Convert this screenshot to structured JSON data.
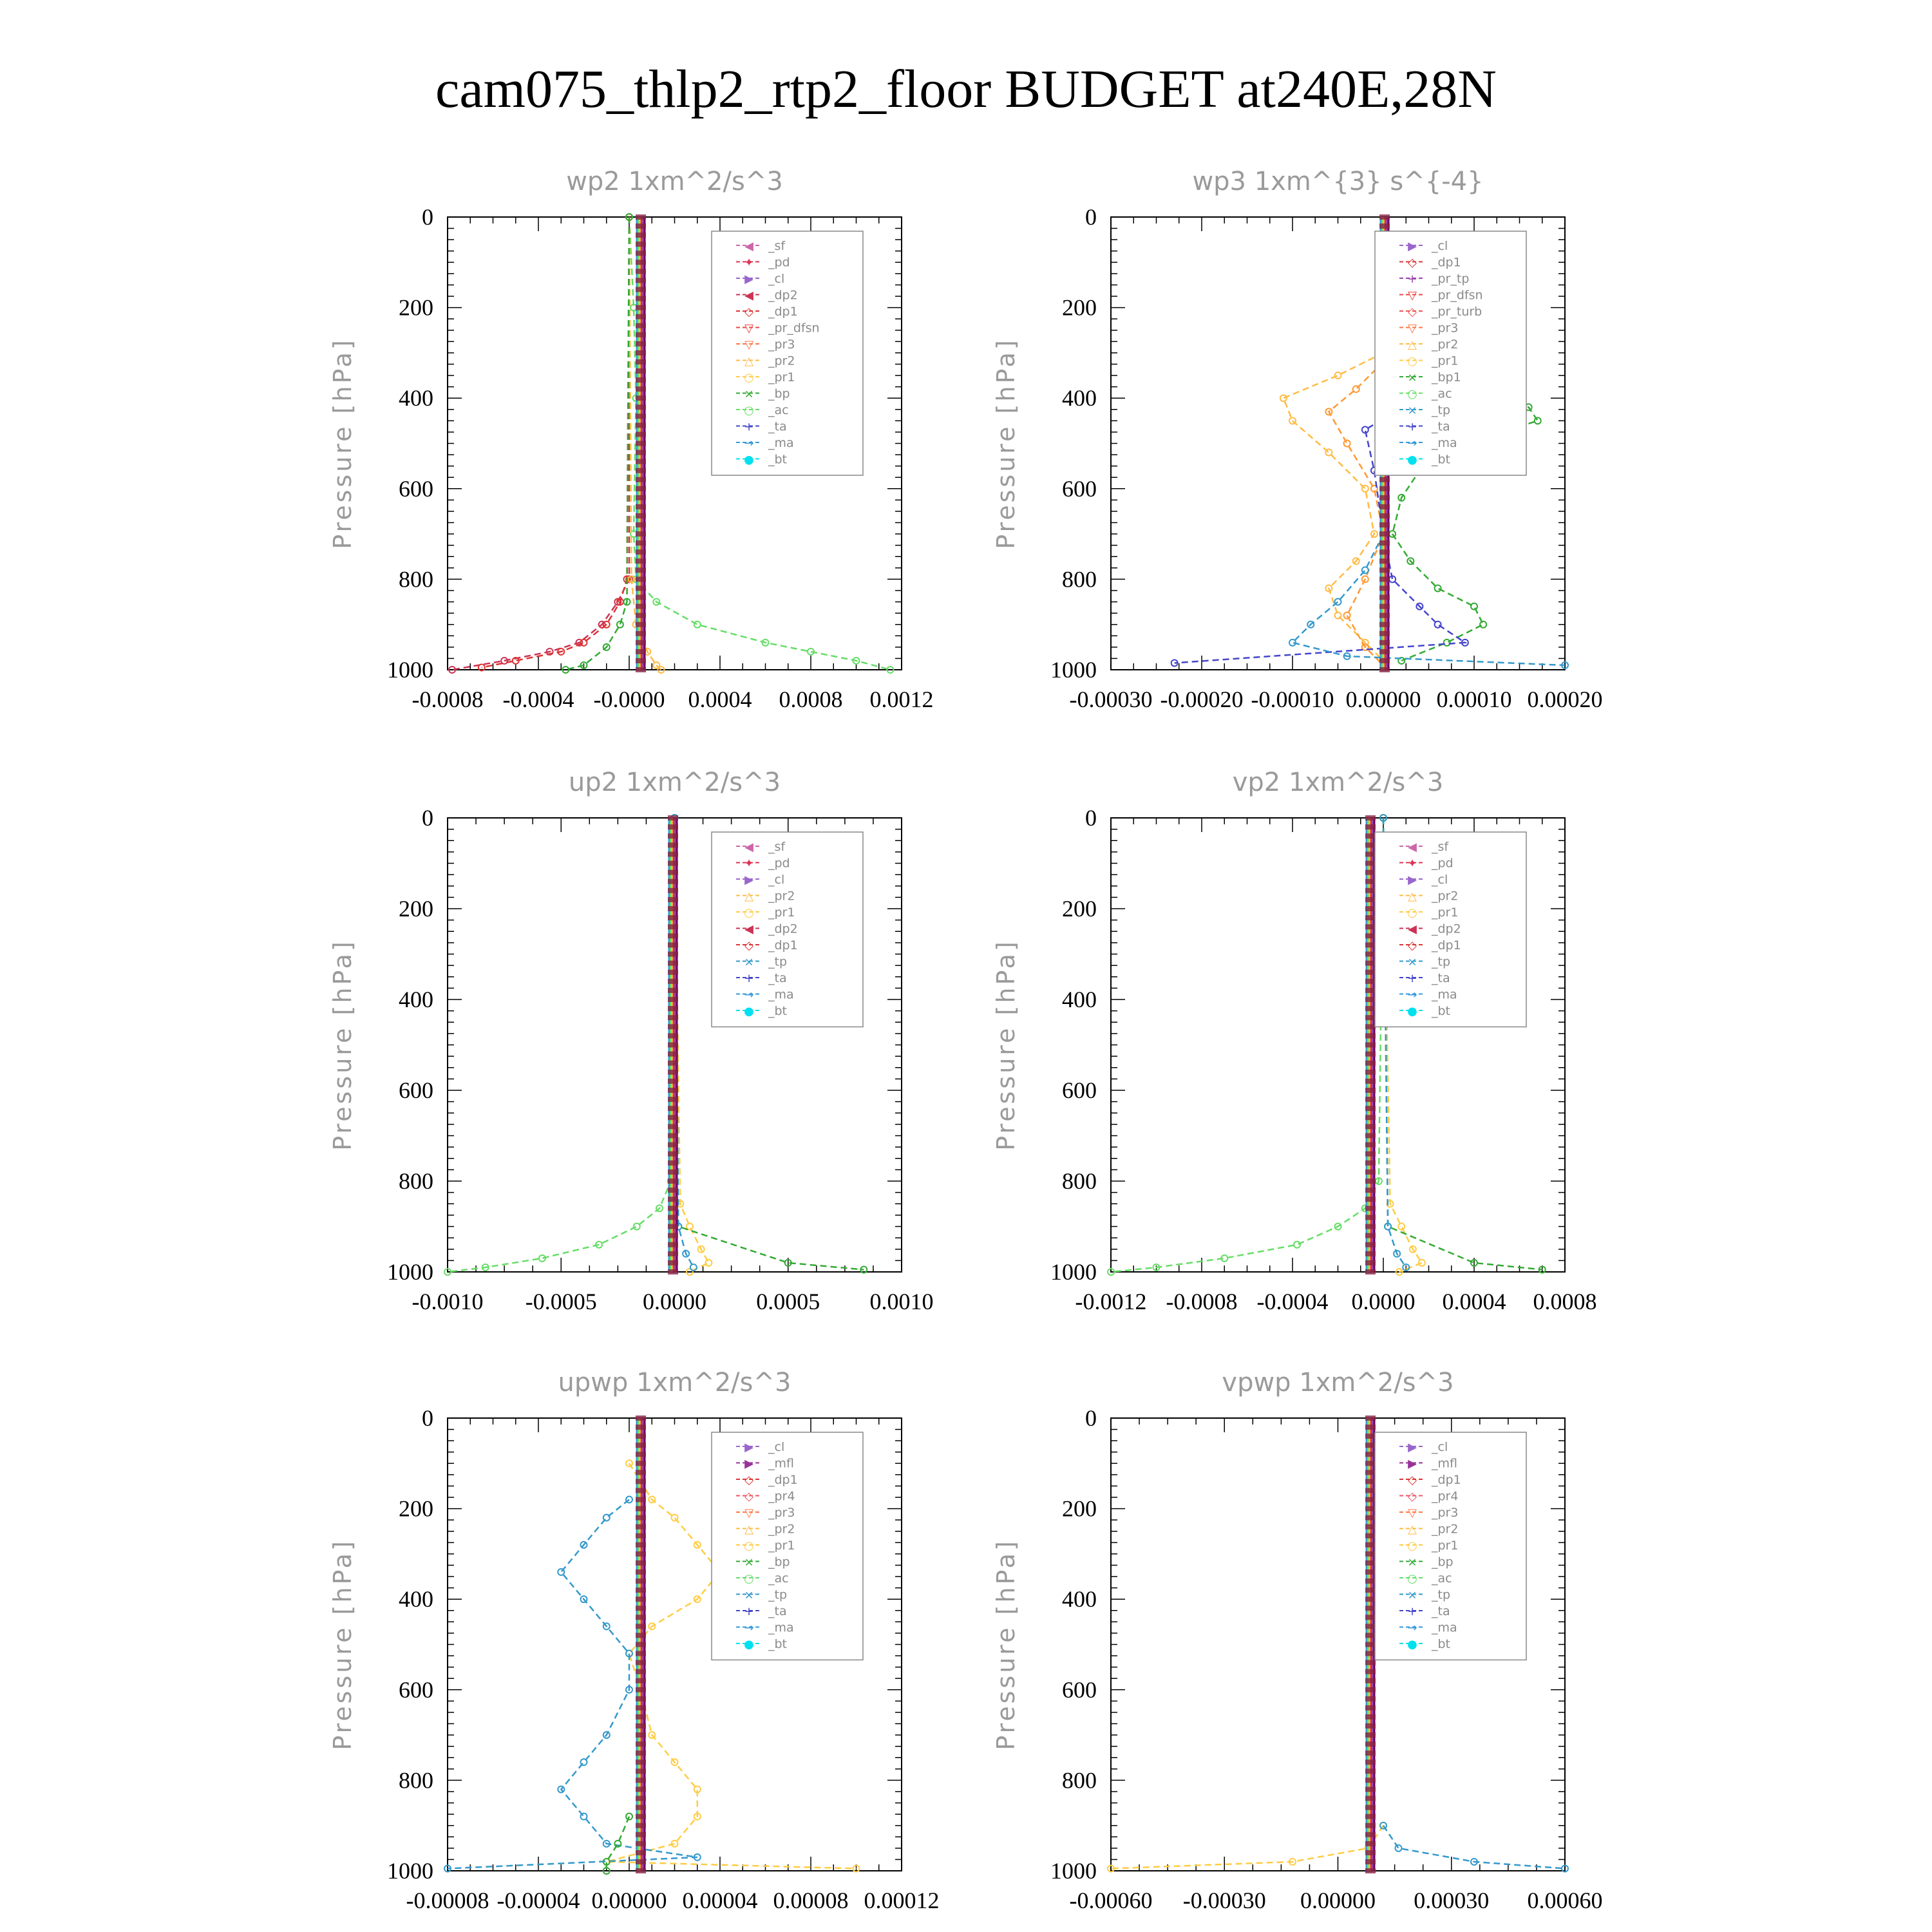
{
  "title": "cam075_thlp2_rtp2_floor  BUDGET at240E,28N",
  "chart_data": [
    {
      "type": "line",
      "title": "wp2   1xm^2/s^3",
      "ylabel": "Pressure  [hPa]",
      "ylim": [
        1000,
        0
      ],
      "yticks": [
        "0",
        "200",
        "400",
        "600",
        "800",
        "1000"
      ],
      "xlim": [
        -0.0008,
        0.0012
      ],
      "xticks": [
        "-0.0008",
        "-0.0004",
        "-0.0000",
        "0.0004",
        "0.0008",
        "0.0012"
      ],
      "legend_position": "top-right",
      "legend": [
        "_sf",
        "_pd",
        "_cl",
        "_dp2",
        "_dp1",
        "_pr_dfsn",
        "_pr3",
        "_pr2",
        "_pr1",
        "_bp",
        "_ac",
        "_ta",
        "_ma",
        "_bt"
      ],
      "series": [
        {
          "name": "_ac",
          "color": "#66dd66",
          "y": [
            0,
            200,
            400,
            700,
            800,
            850,
            900,
            940,
            960,
            980,
            1000
          ],
          "x": [
            0,
            2e-05,
            3e-05,
            2e-05,
            3e-05,
            0.00012,
            0.0003,
            0.0006,
            0.0008,
            0.001,
            0.00115
          ]
        },
        {
          "name": "_dp2",
          "color": "#cc3355",
          "y": [
            0,
            800,
            850,
            900,
            940,
            960,
            980,
            1000
          ],
          "x": [
            0,
            0,
            -5e-05,
            -0.00012,
            -0.00022,
            -0.00035,
            -0.00055,
            -0.00078
          ]
        },
        {
          "name": "_dp1",
          "color": "#dd3333",
          "y": [
            0,
            800,
            850,
            900,
            940,
            960,
            980,
            995
          ],
          "x": [
            0,
            -1e-05,
            -4e-05,
            -0.0001,
            -0.0002,
            -0.0003,
            -0.0005,
            -0.00065
          ]
        },
        {
          "name": "_pr2",
          "color": "#ffbb44",
          "y": [
            0,
            800,
            900,
            960,
            990,
            1000
          ],
          "x": [
            0,
            1e-05,
            3e-05,
            8e-05,
            0.00012,
            0.00014
          ]
        },
        {
          "name": "_pr1",
          "color": "#33aa33",
          "y": [
            0,
            850,
            900,
            950,
            990,
            1000
          ],
          "x": [
            0,
            -1e-05,
            -4e-05,
            -0.0001,
            -0.0002,
            -0.00028
          ]
        }
      ]
    },
    {
      "type": "line",
      "title": "wp3   1xm^{3} s^{-4}",
      "ylabel": "Pressure  [hPa]",
      "ylim": [
        1000,
        0
      ],
      "yticks": [
        "0",
        "200",
        "400",
        "600",
        "800",
        "1000"
      ],
      "xlim": [
        -0.0003,
        0.0002
      ],
      "xticks": [
        "-0.00030",
        "-0.00020",
        "-0.00010",
        "0.00000",
        "0.00010",
        "0.00020"
      ],
      "legend_position": "top-right",
      "legend": [
        "_cl",
        "_dp1",
        "_pr_tp",
        "_pr_dfsn",
        "_pr_turb",
        "_pr3",
        "_pr2",
        "_pr1",
        "_bp1",
        "_ac",
        "_tp",
        "_ta",
        "_ma",
        "_bt"
      ],
      "series": [
        {
          "name": "_bp1",
          "color": "#33aa33",
          "y": [
            300,
            360,
            420,
            450,
            500,
            560,
            620,
            700,
            760,
            820,
            860,
            900,
            940,
            980
          ],
          "x": [
            0,
            6e-05,
            0.00016,
            0.00017,
            9e-05,
            4e-05,
            2e-05,
            1e-05,
            3e-05,
            6e-05,
            0.0001,
            0.00011,
            7e-05,
            2e-05
          ]
        },
        {
          "name": "_pr1",
          "color": "#ffbb44",
          "y": [
            300,
            350,
            400,
            450,
            520,
            600,
            700,
            760,
            820,
            880,
            940,
            980
          ],
          "x": [
            0,
            -5e-05,
            -0.00011,
            -0.0001,
            -6e-05,
            -2e-05,
            -1e-05,
            -3e-05,
            -6e-05,
            -5e-05,
            -2e-05,
            0
          ]
        },
        {
          "name": "_pr2",
          "color": "#ff9933",
          "y": [
            320,
            380,
            430,
            500,
            600,
            700,
            800,
            880,
            950,
            990
          ],
          "x": [
            0,
            -3e-05,
            -6e-05,
            -4e-05,
            -1e-05,
            0,
            -2e-05,
            -4e-05,
            -2e-05,
            0
          ]
        },
        {
          "name": "_ta",
          "color": "#4444cc",
          "y": [
            300,
            360,
            410,
            470,
            560,
            700,
            800,
            860,
            900,
            940,
            985
          ],
          "x": [
            0,
            4e-05,
            3e-05,
            -2e-05,
            -1e-05,
            0,
            1e-05,
            4e-05,
            6e-05,
            9e-05,
            -0.00023
          ]
        },
        {
          "name": "_tp",
          "color": "#3399cc",
          "y": [
            700,
            780,
            850,
            900,
            940,
            970,
            990
          ],
          "x": [
            0,
            -2e-05,
            -5e-05,
            -8e-05,
            -0.0001,
            -4e-05,
            0.0002
          ]
        }
      ]
    },
    {
      "type": "line",
      "title": "up2   1xm^2/s^3",
      "ylabel": "Pressure  [hPa]",
      "ylim": [
        1000,
        0
      ],
      "yticks": [
        "0",
        "200",
        "400",
        "600",
        "800",
        "1000"
      ],
      "xlim": [
        -0.0012,
        0.0012
      ],
      "xticks": [
        "-0.0010",
        "-0.0005",
        "0.0000",
        "0.0005",
        "0.0010"
      ],
      "legend_position": "top-right",
      "legend": [
        "_sf",
        "_pd",
        "_cl",
        "_pr2",
        "_pr1",
        "_dp2",
        "_dp1",
        "_tp",
        "_ta",
        "_ma",
        "_bt"
      ],
      "series": [
        {
          "name": "_dp1",
          "color": "#66dd66",
          "y": [
            0,
            800,
            860,
            900,
            940,
            970,
            990,
            1000
          ],
          "x": [
            0,
            -2e-05,
            -8e-05,
            -0.0002,
            -0.0004,
            -0.0007,
            -0.001,
            -0.0012
          ]
        },
        {
          "name": "_pr1",
          "color": "#ffcc44",
          "y": [
            0,
            850,
            900,
            950,
            980,
            1000
          ],
          "x": [
            0,
            3e-05,
            8e-05,
            0.00014,
            0.00018,
            8e-05
          ]
        },
        {
          "name": "_dp2",
          "color": "#33aa33",
          "y": [
            0,
            900,
            980,
            995
          ],
          "x": [
            0,
            2e-05,
            0.0006,
            0.001
          ]
        },
        {
          "name": "_tp",
          "color": "#3399cc",
          "y": [
            0,
            900,
            960,
            990
          ],
          "x": [
            0,
            2e-05,
            6e-05,
            0.0001
          ]
        }
      ]
    },
    {
      "type": "line",
      "title": "vp2   1xm^2/s^3",
      "ylabel": "Pressure  [hPa]",
      "ylim": [
        1000,
        0
      ],
      "yticks": [
        "0",
        "200",
        "400",
        "600",
        "800",
        "1000"
      ],
      "xlim": [
        -0.0012,
        0.0008
      ],
      "xticks": [
        "-0.0012",
        "-0.0008",
        "-0.0004",
        "0.0000",
        "0.0004",
        "0.0008"
      ],
      "legend_position": "top-right",
      "legend": [
        "_sf",
        "_pd",
        "_cl",
        "_pr2",
        "_pr1",
        "_dp2",
        "_dp1",
        "_tp",
        "_ta",
        "_ma",
        "_bt"
      ],
      "series": [
        {
          "name": "_dp1",
          "color": "#66dd66",
          "y": [
            0,
            800,
            860,
            900,
            940,
            970,
            990,
            1000
          ],
          "x": [
            0,
            -2e-05,
            -8e-05,
            -0.0002,
            -0.00038,
            -0.0007,
            -0.001,
            -0.0012
          ]
        },
        {
          "name": "_pr1",
          "color": "#ffcc44",
          "y": [
            0,
            850,
            900,
            950,
            980,
            1000
          ],
          "x": [
            0,
            3e-05,
            8e-05,
            0.00013,
            0.00017,
            7e-05
          ]
        },
        {
          "name": "_dp2",
          "color": "#33aa33",
          "y": [
            0,
            900,
            980,
            995
          ],
          "x": [
            0,
            2e-05,
            0.0004,
            0.0007
          ]
        },
        {
          "name": "_tp",
          "color": "#3399cc",
          "y": [
            0,
            900,
            960,
            990
          ],
          "x": [
            0,
            2e-05,
            6e-05,
            0.0001
          ]
        }
      ]
    },
    {
      "type": "line",
      "title": "upwp   1xm^2/s^3",
      "ylabel": "Pressure  [hPa]",
      "ylim": [
        1000,
        0
      ],
      "yticks": [
        "0",
        "200",
        "400",
        "600",
        "800",
        "1000"
      ],
      "xlim": [
        -8e-05,
        0.00012
      ],
      "xticks": [
        "-0.00008",
        "-0.00004",
        "0.00000",
        "0.00004",
        "0.00008",
        "0.00012"
      ],
      "legend_position": "top-right",
      "legend": [
        "_cl",
        "_mfl",
        "_dp1",
        "_pr4",
        "_pr3",
        "_pr2",
        "_pr1",
        "_bp",
        "_ac",
        "_tp",
        "_ta",
        "_ma",
        "_bt"
      ],
      "series": [
        {
          "name": "_pr1",
          "color": "#ffcc44",
          "y": [
            100,
            180,
            220,
            280,
            340,
            400,
            460,
            520,
            600,
            700,
            760,
            820,
            880,
            940,
            980,
            995
          ],
          "x": [
            0,
            1e-05,
            2e-05,
            3e-05,
            4e-05,
            3e-05,
            1e-05,
            0,
            5e-06,
            1e-05,
            2e-05,
            3e-05,
            3e-05,
            2e-05,
            -1e-05,
            0.0001
          ]
        },
        {
          "name": "_tp",
          "color": "#3399cc",
          "y": [
            180,
            220,
            280,
            340,
            400,
            460,
            520,
            600,
            700,
            760,
            820,
            880,
            940,
            970,
            995
          ],
          "x": [
            0,
            -1e-05,
            -2e-05,
            -3e-05,
            -2e-05,
            -1e-05,
            0,
            0,
            -1e-05,
            -2e-05,
            -3e-05,
            -2e-05,
            -1e-05,
            3e-05,
            -8e-05
          ]
        },
        {
          "name": "_bp",
          "color": "#33aa33",
          "y": [
            880,
            940,
            980,
            1000
          ],
          "x": [
            0,
            -5e-06,
            -1e-05,
            -1e-05
          ]
        }
      ]
    },
    {
      "type": "line",
      "title": "vpwp   1xm^2/s^3",
      "ylabel": "Pressure  [hPa]",
      "ylim": [
        1000,
        0
      ],
      "yticks": [
        "0",
        "200",
        "400",
        "600",
        "800",
        "1000"
      ],
      "xlim": [
        -0.0009,
        0.0006
      ],
      "xticks": [
        "-0.00060",
        "-0.00030",
        "0.00000",
        "0.00030",
        "0.00060"
      ],
      "legend_position": "top-right",
      "legend": [
        "_cl",
        "_mfl",
        "_dp1",
        "_pr4",
        "_pr3",
        "_pr2",
        "_pr1",
        "_bp",
        "_ac",
        "_tp",
        "_ta",
        "_ma",
        "_bt"
      ],
      "series": [
        {
          "name": "_pr1",
          "color": "#ffcc44",
          "y": [
            900,
            950,
            980,
            995
          ],
          "x": [
            0,
            -5e-05,
            -0.0003,
            -0.0009
          ]
        },
        {
          "name": "_tp",
          "color": "#3399cc",
          "y": [
            900,
            950,
            980,
            995
          ],
          "x": [
            0,
            5e-05,
            0.0003,
            0.0006
          ]
        }
      ]
    }
  ],
  "legend_colors": {
    "_sf": "#cc66aa",
    "_pd": "#dd3355",
    "_cl": "#9966cc",
    "_dp2": "#cc3355",
    "_dp1": "#dd3333",
    "_pr_dfsn": "#ee4444",
    "_pr_tp": "#9944aa",
    "_pr_turb": "#ee5555",
    "_pr3": "#ff7744",
    "_pr4": "#ee5566",
    "_mfl": "#993399",
    "_pr2": "#ffbb44",
    "_pr1": "#ffcc44",
    "_bp": "#33aa33",
    "_bp1": "#33aa33",
    "_ac": "#66dd66",
    "_tp": "#3399cc",
    "_ta": "#4444cc",
    "_ma": "#3399dd",
    "_bt": "#00e0ee"
  },
  "legend_markers": {
    "_sf": "◀",
    "_pd": "✦",
    "_cl": "▶",
    "_dp2": "◀",
    "_dp1": "◇",
    "_pr_dfsn": "▽",
    "_pr_tp": "+",
    "_pr_turb": "◇",
    "_pr3": "▽",
    "_pr4": "◇",
    "_mfl": "▶",
    "_pr2": "△",
    "_pr1": "○",
    "_bp": "×",
    "_bp1": "×",
    "_ac": "○",
    "_tp": "×",
    "_ta": "+",
    "_ma": "→",
    "_bt": "●"
  }
}
